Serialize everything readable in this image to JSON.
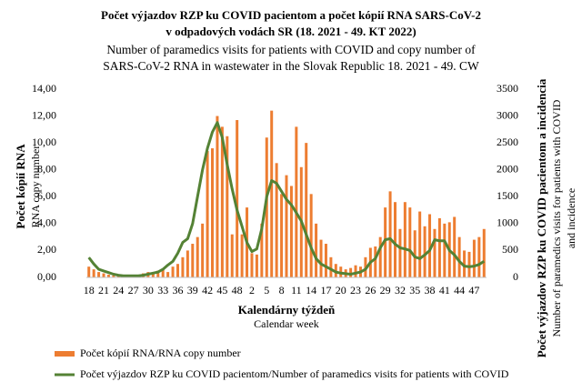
{
  "chart_data": {
    "type": "bar-line",
    "title": "Počet výjazdov RZP ku COVID pacientom a počet kópií RNA  SARS-CoV-2",
    "title_line2": "v odpadových vodách SR (18. 2021 - 49. KT 2022)",
    "subtitle": "Number of paramedics visits for patients with COVID and copy number of",
    "subtitle_line2": "SARS-CoV-2 RNA in wastewater in the Slovak Republic 18. 2021 - 49. CW",
    "x_label": "Kalendárny týždeň",
    "x_label_en": "Calendar week",
    "y_label": "Počet kópií RNA",
    "y_label_en": "RNA copy number",
    "y2_label": "Počet výjazdov RZP ku COVID pacientom a incidencia",
    "y2_label_en": "Number of paramedics visits for patients with COVID",
    "y2_label_en_line2": "and incidence",
    "categories": [
      "18",
      null,
      null,
      "21",
      null,
      null,
      "24",
      null,
      null,
      "27",
      null,
      null,
      "30",
      null,
      null,
      "33",
      null,
      null,
      "36",
      null,
      null,
      "39",
      null,
      null,
      "42",
      null,
      null,
      "45",
      null,
      null,
      "48",
      null,
      null,
      "2",
      null,
      null,
      "5",
      null,
      null,
      "8",
      null,
      null,
      "11",
      null,
      null,
      "14",
      null,
      null,
      "17",
      null,
      null,
      "20",
      null,
      null,
      "23",
      null,
      null,
      "26",
      null,
      null,
      "29",
      null,
      null,
      "32",
      null,
      null,
      "35",
      null,
      null,
      "38",
      null,
      null,
      "41",
      null,
      null,
      "44",
      null,
      null,
      "47",
      null,
      null
    ],
    "series": [
      {
        "name": "Počet kópií RNA/RNA copy number",
        "color": "#ed7d31",
        "kind": "bar",
        "values": [
          0.8,
          0.6,
          0.4,
          0.3,
          0.2,
          0.15,
          0.1,
          0.1,
          0.1,
          0.15,
          0.2,
          0.3,
          0.4,
          0.3,
          0.5,
          0.6,
          0.4,
          0.8,
          1.0,
          1.5,
          2.0,
          2.5,
          3.0,
          4.0,
          9.4,
          9.6,
          12.0,
          11.2,
          10.5,
          3.2,
          11.7,
          3.2,
          5.2,
          1.8,
          1.7,
          4.0,
          10.4,
          12.4,
          8.5,
          6.2,
          7.6,
          6.8,
          11.2,
          8.2,
          10.0,
          6.2,
          4.0,
          2.8,
          2.5,
          1.5,
          1.0,
          0.8,
          0.6,
          0.7,
          0.9,
          0.8,
          1.5,
          2.2,
          2.3,
          3.0,
          5.2,
          6.4,
          5.6,
          3.6,
          5.6,
          5.2,
          3.5,
          4.9,
          3.8,
          4.7,
          3.6,
          4.4,
          4.0,
          4.1,
          4.5,
          3.0,
          2.0,
          1.9,
          2.8,
          3.0,
          3.6
        ]
      },
      {
        "name": "Počet výjazdov RZP ku COVID pacientom/Number of paramedics visits for patients with COVID",
        "color": "#548235",
        "kind": "line",
        "axis": "y2",
        "values": [
          370,
          250,
          150,
          120,
          90,
          60,
          40,
          30,
          30,
          30,
          30,
          40,
          60,
          80,
          100,
          150,
          230,
          300,
          450,
          650,
          720,
          1000,
          1500,
          2000,
          2400,
          2700,
          2880,
          2600,
          2100,
          1650,
          1250,
          950,
          650,
          480,
          530,
          900,
          1500,
          1800,
          1750,
          1600,
          1450,
          1350,
          1200,
          1050,
          800,
          550,
          350,
          250,
          200,
          150,
          100,
          80,
          70,
          60,
          80,
          100,
          150,
          280,
          350,
          550,
          700,
          720,
          620,
          550,
          530,
          500,
          380,
          350,
          420,
          500,
          700,
          680,
          680,
          500,
          420,
          300,
          210,
          200,
          210,
          240,
          300
        ]
      }
    ],
    "ylim": [
      0,
      14
    ],
    "yticks": [
      {
        "value": 0,
        "label": "0,00"
      },
      {
        "value": 2,
        "label": "2,00"
      },
      {
        "value": 4,
        "label": "4,00"
      },
      {
        "value": 6,
        "label": "6,00"
      },
      {
        "value": 8,
        "label": "8,00"
      },
      {
        "value": 10,
        "label": "10,00"
      },
      {
        "value": 12,
        "label": "12,00"
      },
      {
        "value": 14,
        "label": "14,00"
      }
    ],
    "y2lim": [
      0,
      3500
    ],
    "y2ticks": [
      0,
      500,
      1000,
      1500,
      2000,
      2500,
      3000,
      3500
    ],
    "grid": false
  }
}
